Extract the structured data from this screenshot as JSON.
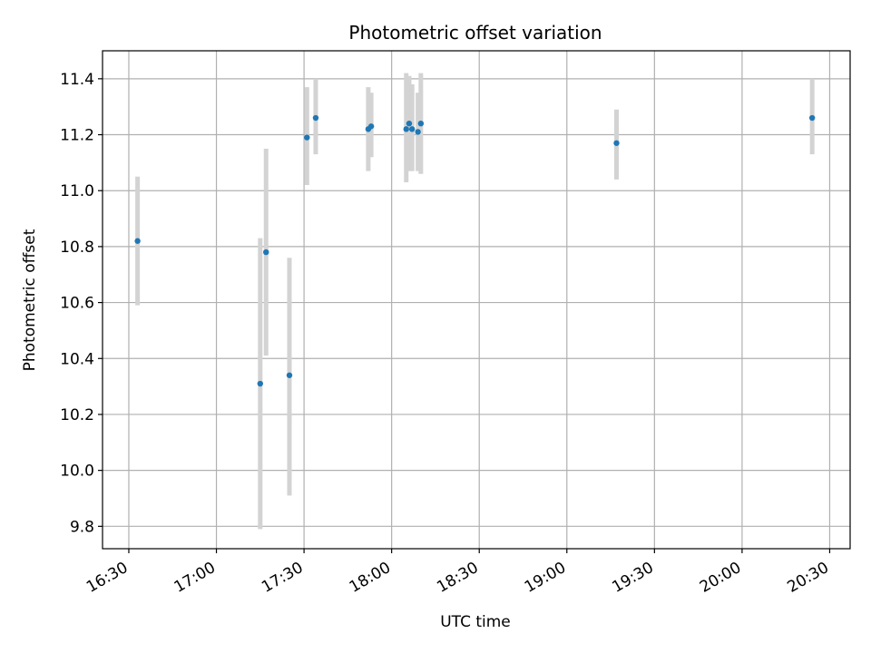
{
  "chart_data": {
    "type": "scatter",
    "title": "Photometric offset variation",
    "xlabel": "UTC time",
    "ylabel": "Photometric offset",
    "x_axis_type": "time",
    "xlim": [
      "16:21",
      "20:37"
    ],
    "ylim": [
      9.72,
      11.5
    ],
    "x_ticks": [
      "16:30",
      "17:00",
      "17:30",
      "18:00",
      "18:30",
      "19:00",
      "19:30",
      "20:00",
      "20:30"
    ],
    "y_ticks": [
      9.8,
      10.0,
      10.2,
      10.4,
      10.6,
      10.8,
      11.0,
      11.2,
      11.4
    ],
    "grid": true,
    "colors": {
      "points": "#1f77b4",
      "error_bars": "#d3d3d3",
      "grid": "#b0b0b0"
    },
    "series": [
      {
        "points": [
          {
            "x": "16:33",
            "y": 10.82,
            "err_low": 10.59,
            "err_high": 11.05
          },
          {
            "x": "17:15",
            "y": 10.31,
            "err_low": 9.79,
            "err_high": 10.83
          },
          {
            "x": "17:17",
            "y": 10.78,
            "err_low": 10.41,
            "err_high": 11.15
          },
          {
            "x": "17:25",
            "y": 10.34,
            "err_low": 9.91,
            "err_high": 10.76
          },
          {
            "x": "17:31",
            "y": 11.19,
            "err_low": 11.02,
            "err_high": 11.37
          },
          {
            "x": "17:34",
            "y": 11.26,
            "err_low": 11.13,
            "err_high": 11.4
          },
          {
            "x": "17:52",
            "y": 11.22,
            "err_low": 11.07,
            "err_high": 11.37
          },
          {
            "x": "17:53",
            "y": 11.23,
            "err_low": 11.12,
            "err_high": 11.35
          },
          {
            "x": "18:05",
            "y": 11.22,
            "err_low": 11.03,
            "err_high": 11.42
          },
          {
            "x": "18:06",
            "y": 11.24,
            "err_low": 11.07,
            "err_high": 11.41
          },
          {
            "x": "18:07",
            "y": 11.22,
            "err_low": 11.07,
            "err_high": 11.38
          },
          {
            "x": "18:09",
            "y": 11.21,
            "err_low": 11.07,
            "err_high": 11.35
          },
          {
            "x": "18:10",
            "y": 11.24,
            "err_low": 11.06,
            "err_high": 11.42
          },
          {
            "x": "19:17",
            "y": 11.17,
            "err_low": 11.04,
            "err_high": 11.29
          },
          {
            "x": "20:24",
            "y": 11.26,
            "err_low": 11.13,
            "err_high": 11.4
          }
        ]
      }
    ]
  }
}
